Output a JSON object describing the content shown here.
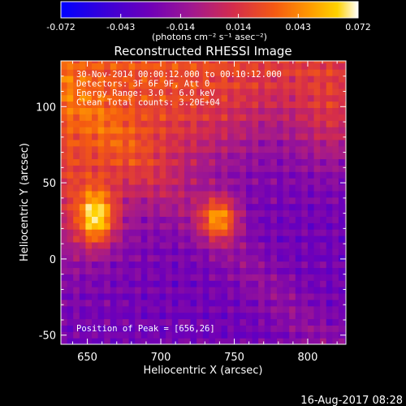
{
  "colorbar": {
    "ticks": [
      "-0.072",
      "-0.043",
      "-0.014",
      "0.014",
      "0.043",
      "0.072"
    ],
    "tick_values": [
      -0.072,
      -0.043,
      -0.014,
      0.014,
      0.043,
      0.072
    ],
    "range": [
      -0.072,
      0.072
    ],
    "units_label": "(photons cm⁻² s⁻¹ asec⁻²)",
    "colors": [
      "#0000ff",
      "#3a00d8",
      "#6f00b8",
      "#a01890",
      "#d42c4c",
      "#f45a12",
      "#ff9c00",
      "#ffd200",
      "#ffffff"
    ]
  },
  "chart_data": {
    "type": "heatmap",
    "title": "Reconstructed RHESSI Image",
    "xlabel": "Heliocentric X (arcsec)",
    "ylabel": "Heliocentric Y (arcsec)",
    "xlim": [
      632,
      826
    ],
    "ylim": [
      -56,
      130
    ],
    "xticks": [
      650,
      700,
      750,
      800
    ],
    "yticks": [
      -50,
      0,
      50,
      100
    ],
    "peak": [
      656,
      26
    ],
    "sources": [
      {
        "x": 656,
        "y": 27,
        "amplitude": 0.072,
        "sigma": [
          9,
          13
        ]
      },
      {
        "x": 740,
        "y": 27,
        "amplitude": 0.066,
        "sigma": [
          9,
          10
        ]
      },
      {
        "x": 820,
        "y": 95,
        "amplitude": 0.03,
        "sigma": [
          20,
          25
        ]
      }
    ],
    "annotations": [
      "30-Nov-2014 00:00:12.000 to 00:10:12.000",
      "Detectors: 3F 6F 9F, Att 0",
      "Energy Range: 3.0 - 6.0 keV",
      "Clean     Total counts: 3.20E+04"
    ],
    "peak_label": "Position of Peak = [656,26]"
  },
  "footer_date": "16-Aug-2017 08:28"
}
